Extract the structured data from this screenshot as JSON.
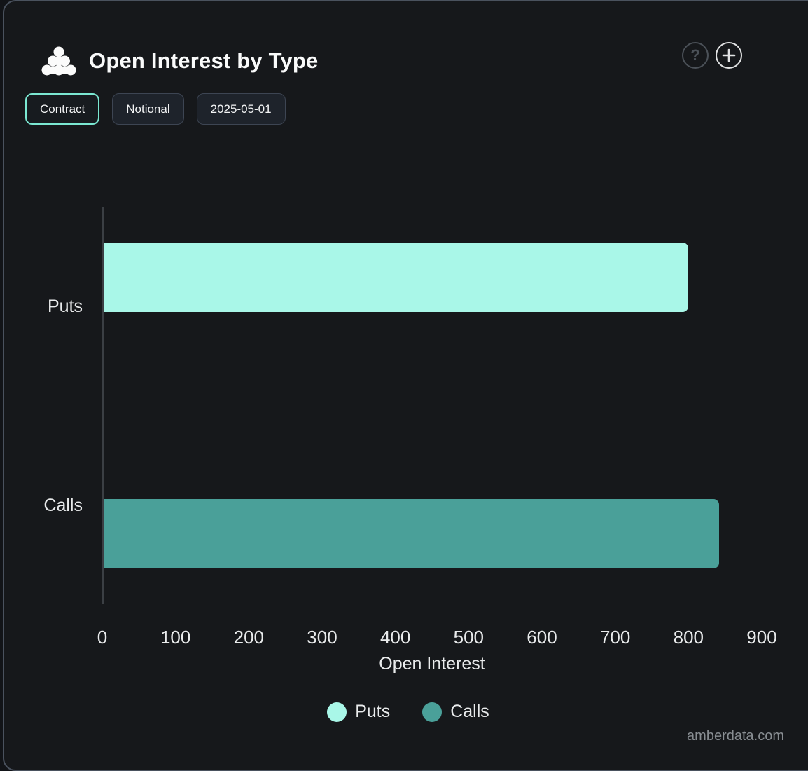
{
  "header": {
    "title": "Open Interest by Type"
  },
  "header_icons": {
    "help": "?",
    "add": "+"
  },
  "filters": {
    "contract": "Contract",
    "notional": "Notional",
    "date": "2025-05-01"
  },
  "chart_data": {
    "type": "bar",
    "orientation": "horizontal",
    "title": "Open Interest by Type",
    "categories": [
      "Puts",
      "Calls"
    ],
    "series": [
      {
        "name": "Puts",
        "value": 800,
        "color": "#a9f7e8"
      },
      {
        "name": "Calls",
        "value": 842,
        "color": "#4aa099"
      }
    ],
    "xlabel": "Open Interest",
    "xlim": [
      0,
      900
    ],
    "xticks": [
      0,
      100,
      200,
      300,
      400,
      500,
      600,
      700,
      800,
      900
    ],
    "grid": false,
    "legend_position": "bottom"
  },
  "legend": [
    {
      "label": "Puts",
      "color": "#a9f7e8"
    },
    {
      "label": "Calls",
      "color": "#4aa099"
    }
  ],
  "footer": {
    "watermark": "amberdata.com"
  },
  "colors": {
    "background": "#16181b",
    "card_border": "#4a525e",
    "axis_line": "#3b3f44",
    "text": "#e9ebec",
    "muted_text": "#888d92",
    "active_chip_border": "#7be8d2"
  }
}
